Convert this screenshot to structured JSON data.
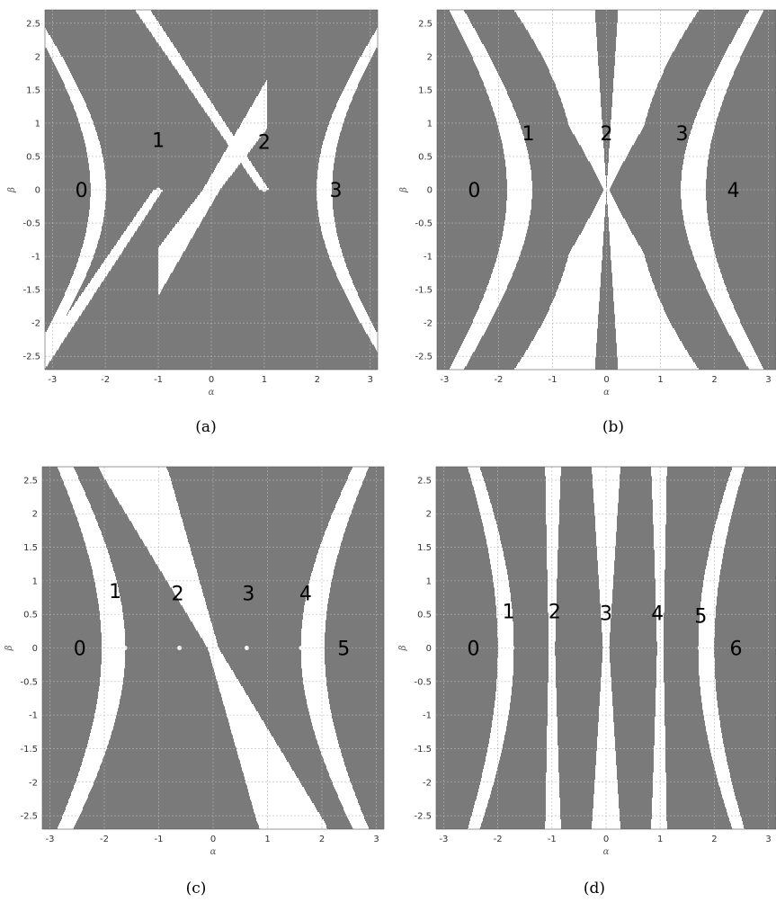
{
  "colors": {
    "forbidden": "#7a7a7a",
    "allowed": "#ffffff",
    "grid": "#b8b8b8"
  },
  "chart_data": [
    {
      "type": "heatmap",
      "caption": "(a)",
      "xlabel": "α",
      "ylabel": "β",
      "xlim": [
        -3.14,
        3.14
      ],
      "ylim": [
        -2.7,
        2.7
      ],
      "xticks": [
        "-3",
        "-2",
        "-1",
        "0",
        "1",
        "2",
        "3"
      ],
      "yticks": [
        "2.5",
        "2",
        "1.5",
        "1",
        "0.5",
        "0",
        "-0.5",
        "-1",
        "-1.5",
        "-2",
        "-2.5"
      ],
      "grid": true,
      "crossing_points": [
        [
          -1,
          0
        ],
        [
          1,
          0
        ]
      ],
      "labels": [
        {
          "text": "0",
          "x": -2.45,
          "y": 0.0
        },
        {
          "text": "1",
          "x": -1.0,
          "y": 0.75
        },
        {
          "text": "2",
          "x": 1.0,
          "y": 0.72
        },
        {
          "text": "3",
          "x": 2.35,
          "y": 0.0
        }
      ]
    },
    {
      "type": "heatmap",
      "caption": "(b)",
      "xlabel": "α",
      "ylabel": "β",
      "xlim": [
        -3.14,
        3.14
      ],
      "ylim": [
        -2.7,
        2.7
      ],
      "xticks": [
        "-3",
        "-2",
        "-1",
        "0",
        "1",
        "2",
        "3"
      ],
      "yticks": [
        "2.5",
        "2",
        "1.5",
        "1",
        "0.5",
        "0",
        "-0.5",
        "-1",
        "-1.5",
        "-2",
        "-2.5"
      ],
      "grid": true,
      "crossing_points": [
        [
          -1.414,
          0
        ],
        [
          0,
          0
        ],
        [
          1.414,
          0
        ]
      ],
      "labels": [
        {
          "text": "0",
          "x": -2.45,
          "y": 0.0
        },
        {
          "text": "1",
          "x": -1.45,
          "y": 0.85
        },
        {
          "text": "2",
          "x": 0.0,
          "y": 0.85
        },
        {
          "text": "3",
          "x": 1.4,
          "y": 0.85
        },
        {
          "text": "4",
          "x": 2.35,
          "y": 0.0
        }
      ]
    },
    {
      "type": "heatmap",
      "caption": "(c)",
      "xlabel": "α",
      "ylabel": "β",
      "xlim": [
        -3.14,
        3.14
      ],
      "ylim": [
        -2.7,
        2.7
      ],
      "xticks": [
        "-3",
        "-2",
        "-1",
        "0",
        "1",
        "2",
        "3"
      ],
      "yticks": [
        "2.5",
        "2",
        "1.5",
        "1",
        "0.5",
        "0",
        "-0.5",
        "-1",
        "-1.5",
        "-2",
        "-2.5"
      ],
      "grid": true,
      "crossing_points": [
        [
          -1.618,
          0
        ],
        [
          -0.618,
          0
        ],
        [
          0.618,
          0
        ],
        [
          1.618,
          0
        ]
      ],
      "labels": [
        {
          "text": "0",
          "x": -2.45,
          "y": 0.0
        },
        {
          "text": "1",
          "x": -1.8,
          "y": 0.85
        },
        {
          "text": "2",
          "x": -0.65,
          "y": 0.82
        },
        {
          "text": "3",
          "x": 0.65,
          "y": 0.82
        },
        {
          "text": "4",
          "x": 1.7,
          "y": 0.82
        },
        {
          "text": "5",
          "x": 2.4,
          "y": 0.0
        }
      ]
    },
    {
      "type": "heatmap",
      "caption": "(d)",
      "xlabel": "α",
      "ylabel": "β",
      "xlim": [
        -3.14,
        3.14
      ],
      "ylim": [
        -2.7,
        2.7
      ],
      "xticks": [
        "-3",
        "-2",
        "-1",
        "0",
        "1",
        "2",
        "3"
      ],
      "yticks": [
        "2.5",
        "2",
        "1.5",
        "1",
        "0.5",
        "0",
        "-0.5",
        "-1",
        "-1.5",
        "-2",
        "-2.5"
      ],
      "grid": true,
      "crossing_points": [
        [
          -1.732,
          0
        ],
        [
          -1,
          0
        ],
        [
          0,
          0
        ],
        [
          1,
          0
        ],
        [
          1.732,
          0
        ]
      ],
      "labels": [
        {
          "text": "0",
          "x": -2.45,
          "y": 0.0
        },
        {
          "text": "1",
          "x": -1.8,
          "y": 0.55
        },
        {
          "text": "2",
          "x": -0.95,
          "y": 0.55
        },
        {
          "text": "3",
          "x": 0.0,
          "y": 0.52
        },
        {
          "text": "4",
          "x": 0.95,
          "y": 0.52
        },
        {
          "text": "5",
          "x": 1.75,
          "y": 0.48
        },
        {
          "text": "6",
          "x": 2.4,
          "y": 0.0
        }
      ]
    }
  ]
}
